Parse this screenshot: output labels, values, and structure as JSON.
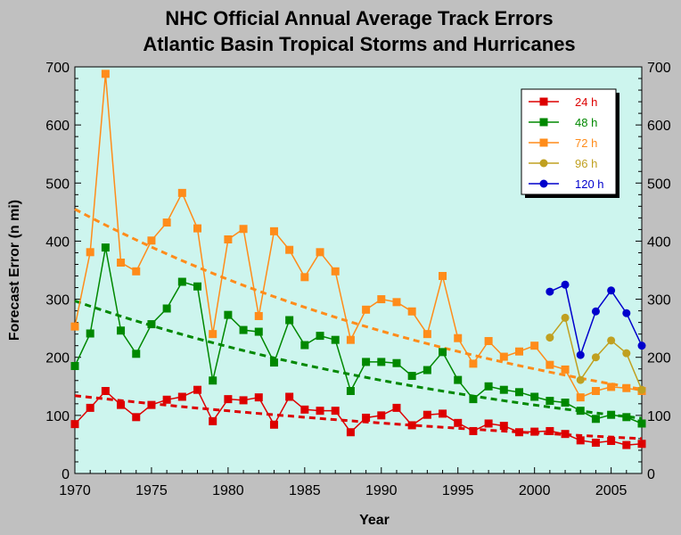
{
  "chart_data": {
    "type": "line",
    "title": "NHC Official Annual Average Track Errors",
    "subtitle": "Atlantic Basin Tropical Storms and Hurricanes",
    "xlabel": "Year",
    "ylabel": "Forecast Error (n mi)",
    "xlim": [
      1970,
      2007
    ],
    "ylim": [
      0,
      700
    ],
    "x_ticks": [
      1970,
      1975,
      1980,
      1985,
      1990,
      1995,
      2000,
      2005
    ],
    "y_ticks": [
      0,
      100,
      200,
      300,
      400,
      500,
      600,
      700
    ],
    "grid": false,
    "legend_position": "top-right",
    "series": [
      {
        "name": "24 h",
        "color": "#dd0000",
        "marker": "square",
        "x": [
          1970,
          1971,
          1972,
          1973,
          1974,
          1975,
          1976,
          1977,
          1978,
          1979,
          1980,
          1981,
          1982,
          1983,
          1984,
          1985,
          1986,
          1987,
          1988,
          1989,
          1990,
          1991,
          1992,
          1993,
          1994,
          1995,
          1996,
          1997,
          1998,
          1999,
          2000,
          2001,
          2002,
          2003,
          2004,
          2005,
          2006,
          2007
        ],
        "y": [
          85,
          113,
          142,
          118,
          97,
          118,
          127,
          132,
          144,
          90,
          128,
          126,
          131,
          84,
          132,
          110,
          108,
          108,
          71,
          96,
          100,
          113,
          83,
          101,
          103,
          87,
          73,
          86,
          82,
          71,
          72,
          73,
          68,
          57,
          53,
          56,
          49,
          51
        ],
        "trend": [
          134,
          60
        ]
      },
      {
        "name": "48 h",
        "color": "#008800",
        "marker": "square",
        "x": [
          1970,
          1971,
          1972,
          1973,
          1974,
          1975,
          1976,
          1977,
          1978,
          1979,
          1980,
          1981,
          1982,
          1983,
          1984,
          1985,
          1986,
          1987,
          1988,
          1989,
          1990,
          1991,
          1992,
          1993,
          1994,
          1995,
          1996,
          1997,
          1998,
          1999,
          2000,
          2001,
          2002,
          2003,
          2004,
          2005,
          2006,
          2007
        ],
        "y": [
          185,
          241,
          389,
          246,
          206,
          257,
          284,
          330,
          322,
          160,
          273,
          247,
          244,
          191,
          264,
          221,
          237,
          230,
          142,
          192,
          192,
          190,
          168,
          178,
          209,
          161,
          128,
          150,
          144,
          140,
          132,
          125,
          122,
          108,
          94,
          101,
          97,
          86
        ],
        "trend": [
          297,
          95
        ]
      },
      {
        "name": "72 h",
        "color": "#ff8c1a",
        "marker": "square",
        "x": [
          1970,
          1971,
          1972,
          1973,
          1974,
          1975,
          1976,
          1977,
          1978,
          1979,
          1980,
          1981,
          1982,
          1983,
          1984,
          1985,
          1986,
          1987,
          1988,
          1989,
          1990,
          1991,
          1992,
          1993,
          1994,
          1995,
          1996,
          1997,
          1998,
          1999,
          2000,
          2001,
          2002,
          2003,
          2004,
          2005,
          2006,
          2007
        ],
        "y": [
          253,
          381,
          688,
          363,
          348,
          401,
          432,
          483,
          422,
          240,
          403,
          421,
          271,
          417,
          385,
          338,
          381,
          348,
          230,
          282,
          300,
          295,
          279,
          240,
          340,
          233,
          189,
          228,
          201,
          210,
          220,
          187,
          179,
          131,
          142,
          149,
          147,
          142
        ],
        "trend": [
          455,
          145
        ]
      },
      {
        "name": "96 h",
        "color": "#c0a020",
        "marker": "circle",
        "x": [
          2001,
          2002,
          2003,
          2004,
          2005,
          2006,
          2007
        ],
        "y": [
          234,
          268,
          161,
          200,
          229,
          207,
          144
        ],
        "trend": null
      },
      {
        "name": "120 h",
        "color": "#0000cc",
        "marker": "circle",
        "x": [
          2001,
          2002,
          2003,
          2004,
          2005,
          2006,
          2007
        ],
        "y": [
          313,
          325,
          204,
          279,
          315,
          276,
          220
        ],
        "trend": null
      }
    ]
  }
}
